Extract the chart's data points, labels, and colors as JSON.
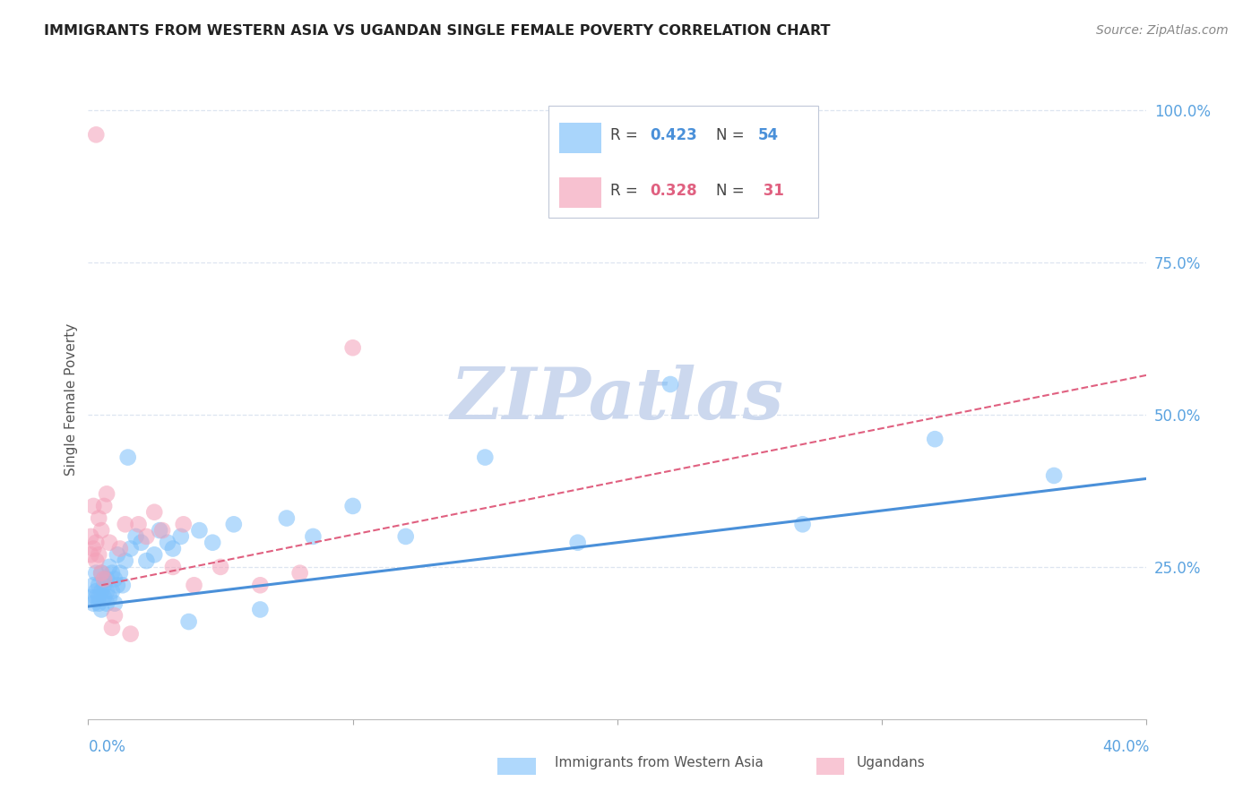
{
  "title": "IMMIGRANTS FROM WESTERN ASIA VS UGANDAN SINGLE FEMALE POVERTY CORRELATION CHART",
  "source": "Source: ZipAtlas.com",
  "ylabel": "Single Female Poverty",
  "xlim": [
    0.0,
    0.4
  ],
  "ylim": [
    0.0,
    1.05
  ],
  "blue_color": "#7bbffa",
  "pink_color": "#f4a0b8",
  "blue_line_color": "#4a90d9",
  "pink_line_color": "#e06080",
  "watermark": "ZIPatlas",
  "blue_scatter_x": [
    0.001,
    0.002,
    0.002,
    0.003,
    0.003,
    0.003,
    0.004,
    0.004,
    0.004,
    0.005,
    0.005,
    0.005,
    0.006,
    0.006,
    0.006,
    0.007,
    0.007,
    0.007,
    0.008,
    0.008,
    0.009,
    0.009,
    0.01,
    0.01,
    0.011,
    0.011,
    0.012,
    0.013,
    0.014,
    0.015,
    0.016,
    0.018,
    0.02,
    0.022,
    0.025,
    0.027,
    0.03,
    0.032,
    0.035,
    0.038,
    0.042,
    0.047,
    0.055,
    0.065,
    0.075,
    0.085,
    0.1,
    0.12,
    0.15,
    0.185,
    0.22,
    0.27,
    0.32,
    0.365
  ],
  "blue_scatter_y": [
    0.2,
    0.19,
    0.22,
    0.2,
    0.21,
    0.24,
    0.19,
    0.22,
    0.2,
    0.18,
    0.21,
    0.24,
    0.2,
    0.22,
    0.23,
    0.19,
    0.21,
    0.23,
    0.2,
    0.25,
    0.21,
    0.24,
    0.19,
    0.23,
    0.22,
    0.27,
    0.24,
    0.22,
    0.26,
    0.43,
    0.28,
    0.3,
    0.29,
    0.26,
    0.27,
    0.31,
    0.29,
    0.28,
    0.3,
    0.16,
    0.31,
    0.29,
    0.32,
    0.18,
    0.33,
    0.3,
    0.35,
    0.3,
    0.43,
    0.29,
    0.55,
    0.32,
    0.46,
    0.4
  ],
  "pink_scatter_x": [
    0.001,
    0.001,
    0.002,
    0.002,
    0.003,
    0.003,
    0.004,
    0.004,
    0.005,
    0.005,
    0.006,
    0.006,
    0.007,
    0.008,
    0.009,
    0.01,
    0.012,
    0.014,
    0.016,
    0.019,
    0.022,
    0.025,
    0.028,
    0.032,
    0.036,
    0.04,
    0.05,
    0.065,
    0.08,
    0.1,
    0.003
  ],
  "pink_scatter_y": [
    0.27,
    0.3,
    0.28,
    0.35,
    0.26,
    0.29,
    0.27,
    0.33,
    0.24,
    0.31,
    0.23,
    0.35,
    0.37,
    0.29,
    0.15,
    0.17,
    0.28,
    0.32,
    0.14,
    0.32,
    0.3,
    0.34,
    0.31,
    0.25,
    0.32,
    0.22,
    0.25,
    0.22,
    0.24,
    0.61,
    0.96
  ],
  "blue_trend_x": [
    0.0,
    0.4
  ],
  "blue_trend_y": [
    0.185,
    0.395
  ],
  "pink_trend_x": [
    0.005,
    0.4
  ],
  "pink_trend_y": [
    0.22,
    0.565
  ],
  "grid_color": "#dde5f0",
  "bg_color": "#ffffff",
  "title_color": "#333333",
  "axis_color": "#5ba3e0",
  "watermark_color": "#ccd8ee",
  "legend_r_blue": "0.423",
  "legend_n_blue": "54",
  "legend_r_pink": "0.328",
  "legend_n_pink": "31"
}
